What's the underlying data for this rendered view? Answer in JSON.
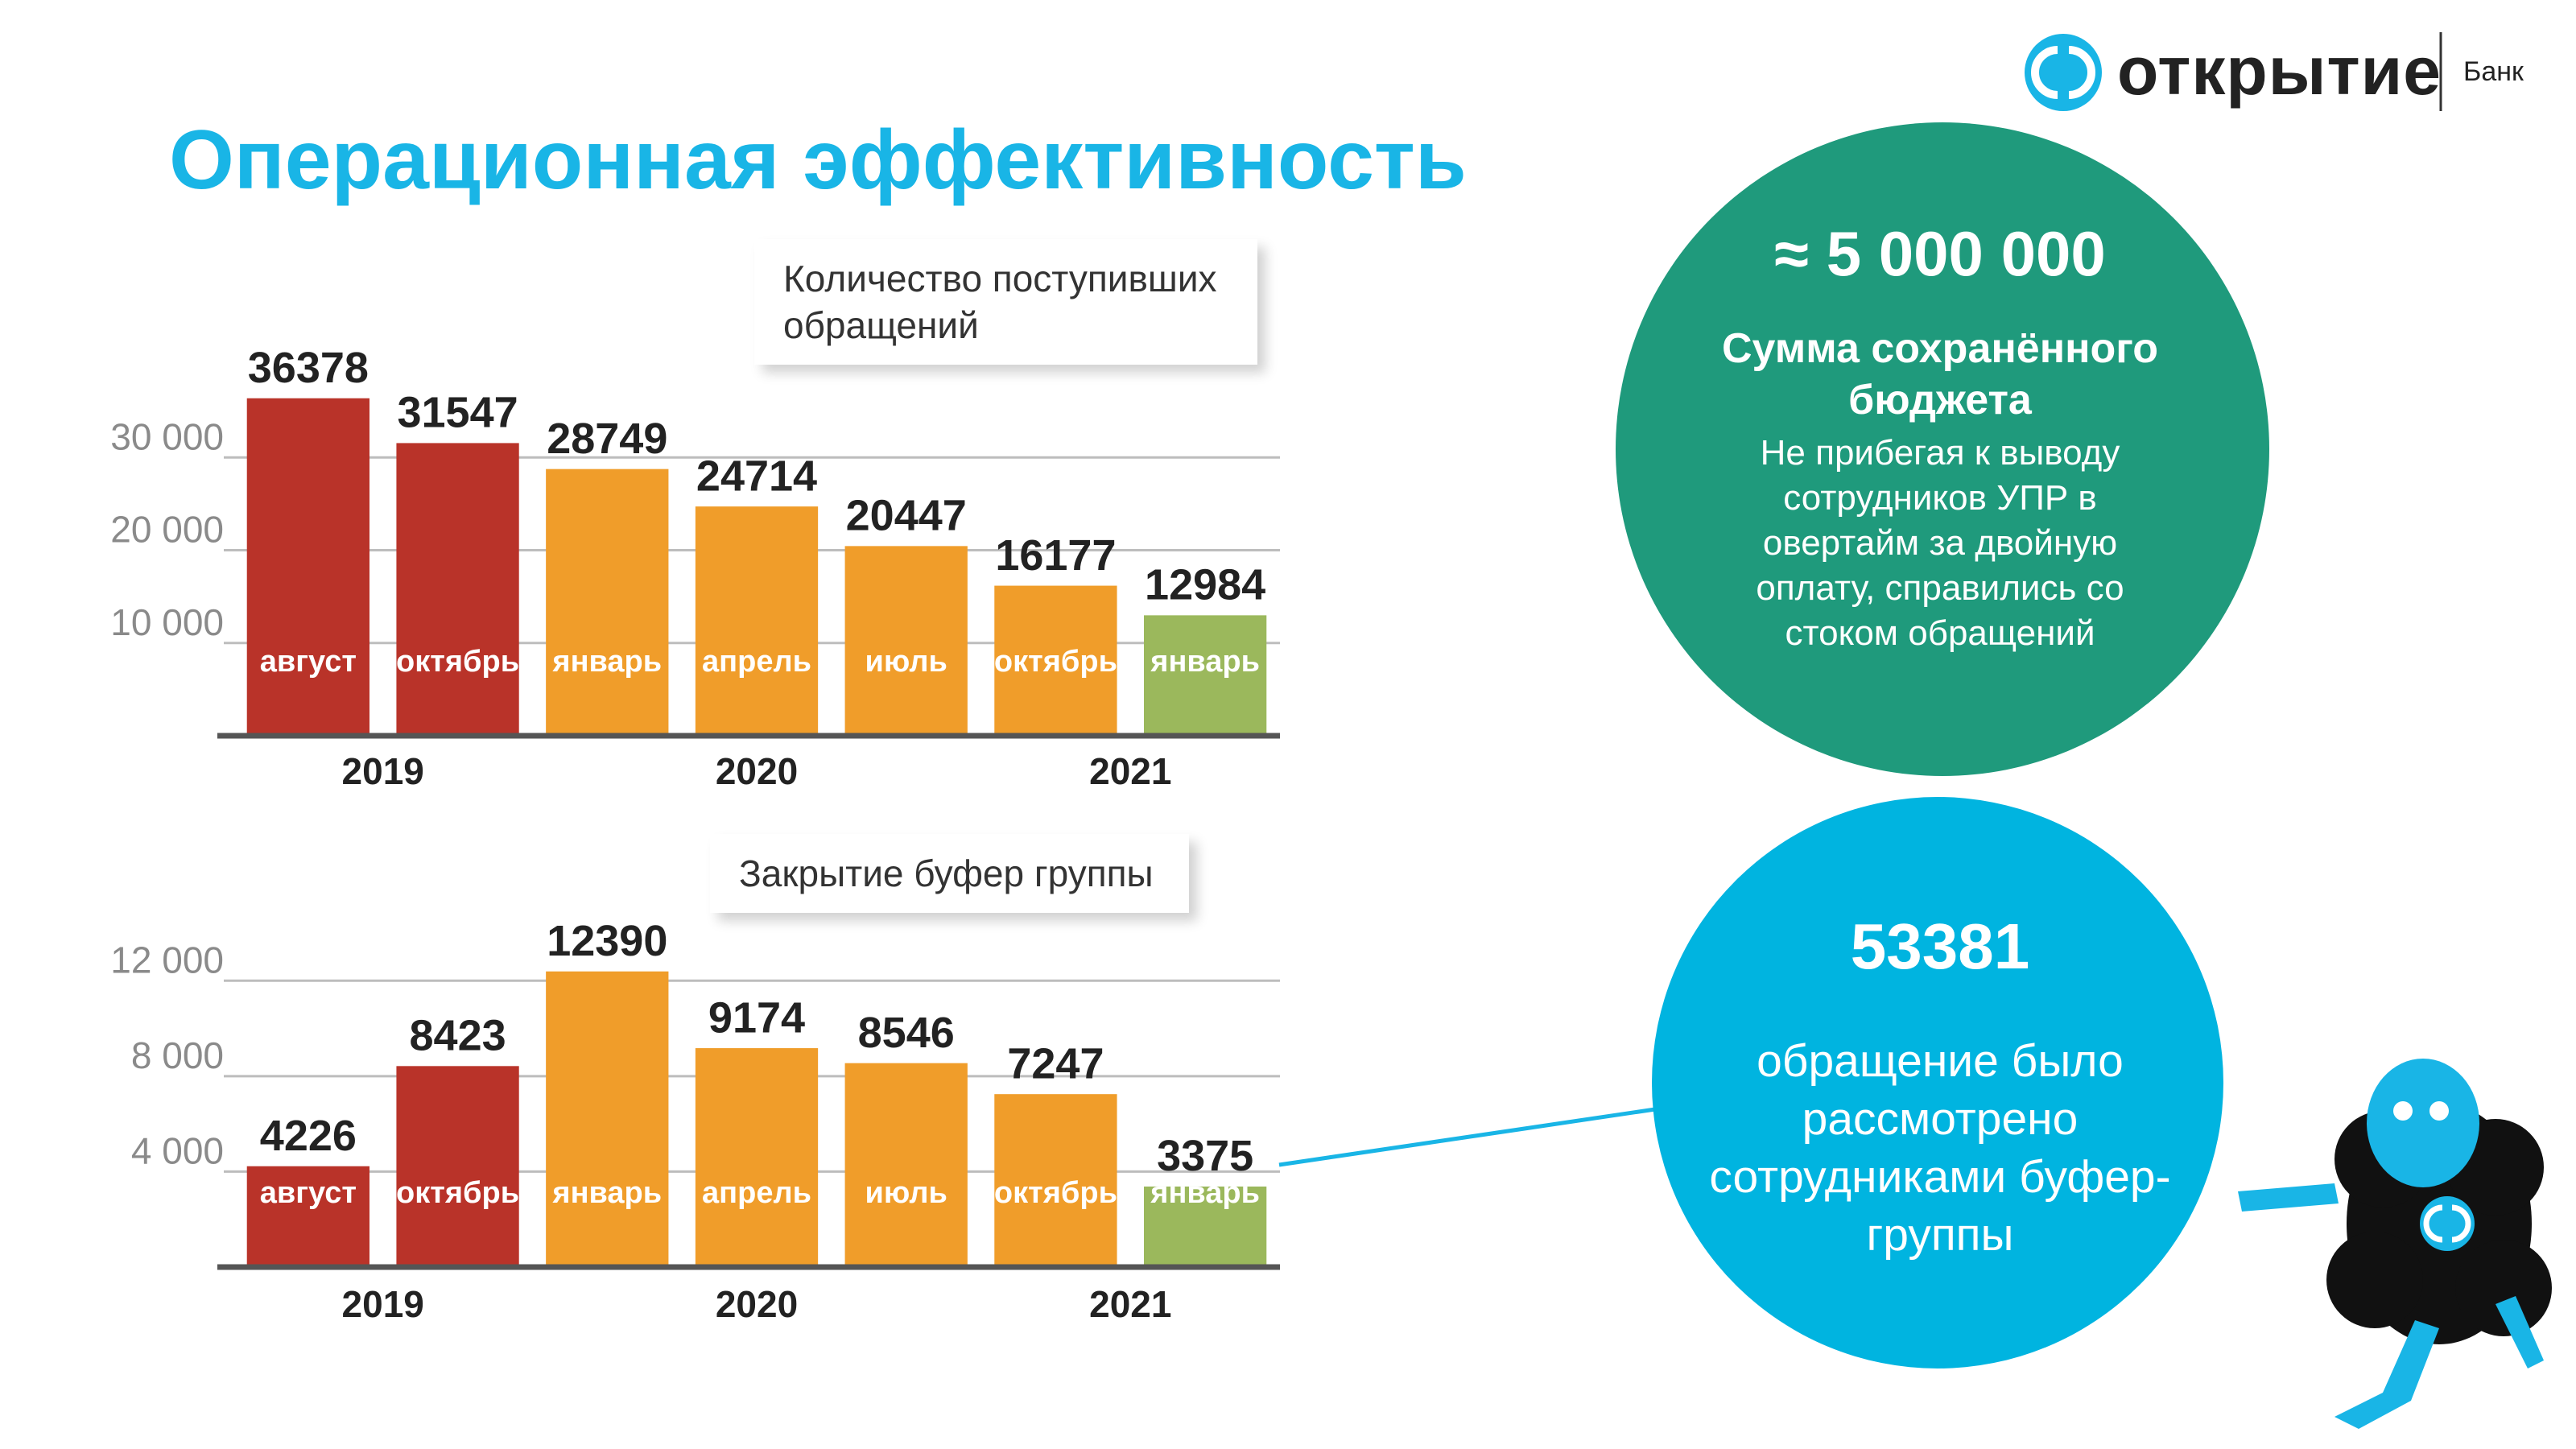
{
  "header": {
    "title": "Операционная эффективность",
    "logo_name": "открытие",
    "logo_suffix": "Банк"
  },
  "chart_data": [
    {
      "type": "bar",
      "title": "Количество поступивших обращений",
      "categories": [
        "август",
        "октябрь",
        "январь",
        "апрель",
        "июль",
        "октябрь",
        "январь"
      ],
      "years": [
        "2019",
        "2019",
        "2020",
        "2020",
        "2020",
        "2021",
        "2021"
      ],
      "values": [
        36378,
        31547,
        28749,
        24714,
        20447,
        16177,
        12984
      ],
      "colors": [
        "#b93329",
        "#b93329",
        "#f09d2a",
        "#f09d2a",
        "#f09d2a",
        "#f09d2a",
        "#9bb85c"
      ],
      "ylim": [
        0,
        40000
      ],
      "yticks": [
        {
          "value": 10000,
          "label": "10 000"
        },
        {
          "value": 20000,
          "label": "20 000"
        },
        {
          "value": 30000,
          "label": "30 000"
        }
      ],
      "grid": true
    },
    {
      "type": "bar",
      "title": "Закрытие буфер группы",
      "categories": [
        "август",
        "октябрь",
        "январь",
        "апрель",
        "июль",
        "октябрь",
        "январь"
      ],
      "years": [
        "2019",
        "2019",
        "2020",
        "2020",
        "2020",
        "2021",
        "2021"
      ],
      "values": [
        4226,
        8423,
        12390,
        9174,
        8546,
        7247,
        3375
      ],
      "colors": [
        "#b93329",
        "#b93329",
        "#f09d2a",
        "#f09d2a",
        "#f09d2a",
        "#f09d2a",
        "#9bb85c"
      ],
      "ylim": [
        0,
        14000
      ],
      "yticks": [
        {
          "value": 4000,
          "label": "4 000"
        },
        {
          "value": 8000,
          "label": "8 000"
        },
        {
          "value": 12000,
          "label": "12 000"
        }
      ],
      "grid": true
    }
  ],
  "callouts": [
    {
      "value": "≈ 5 000 000",
      "title": "Сумма сохранённого бюджета",
      "text": "Не прибегая к выводу сотрудников УПР в овертайм за двойную оплату, справились со стоком обращений"
    },
    {
      "value": 53381,
      "text": "обращение было рассмотрено сотрудниками буфер-группы"
    }
  ]
}
